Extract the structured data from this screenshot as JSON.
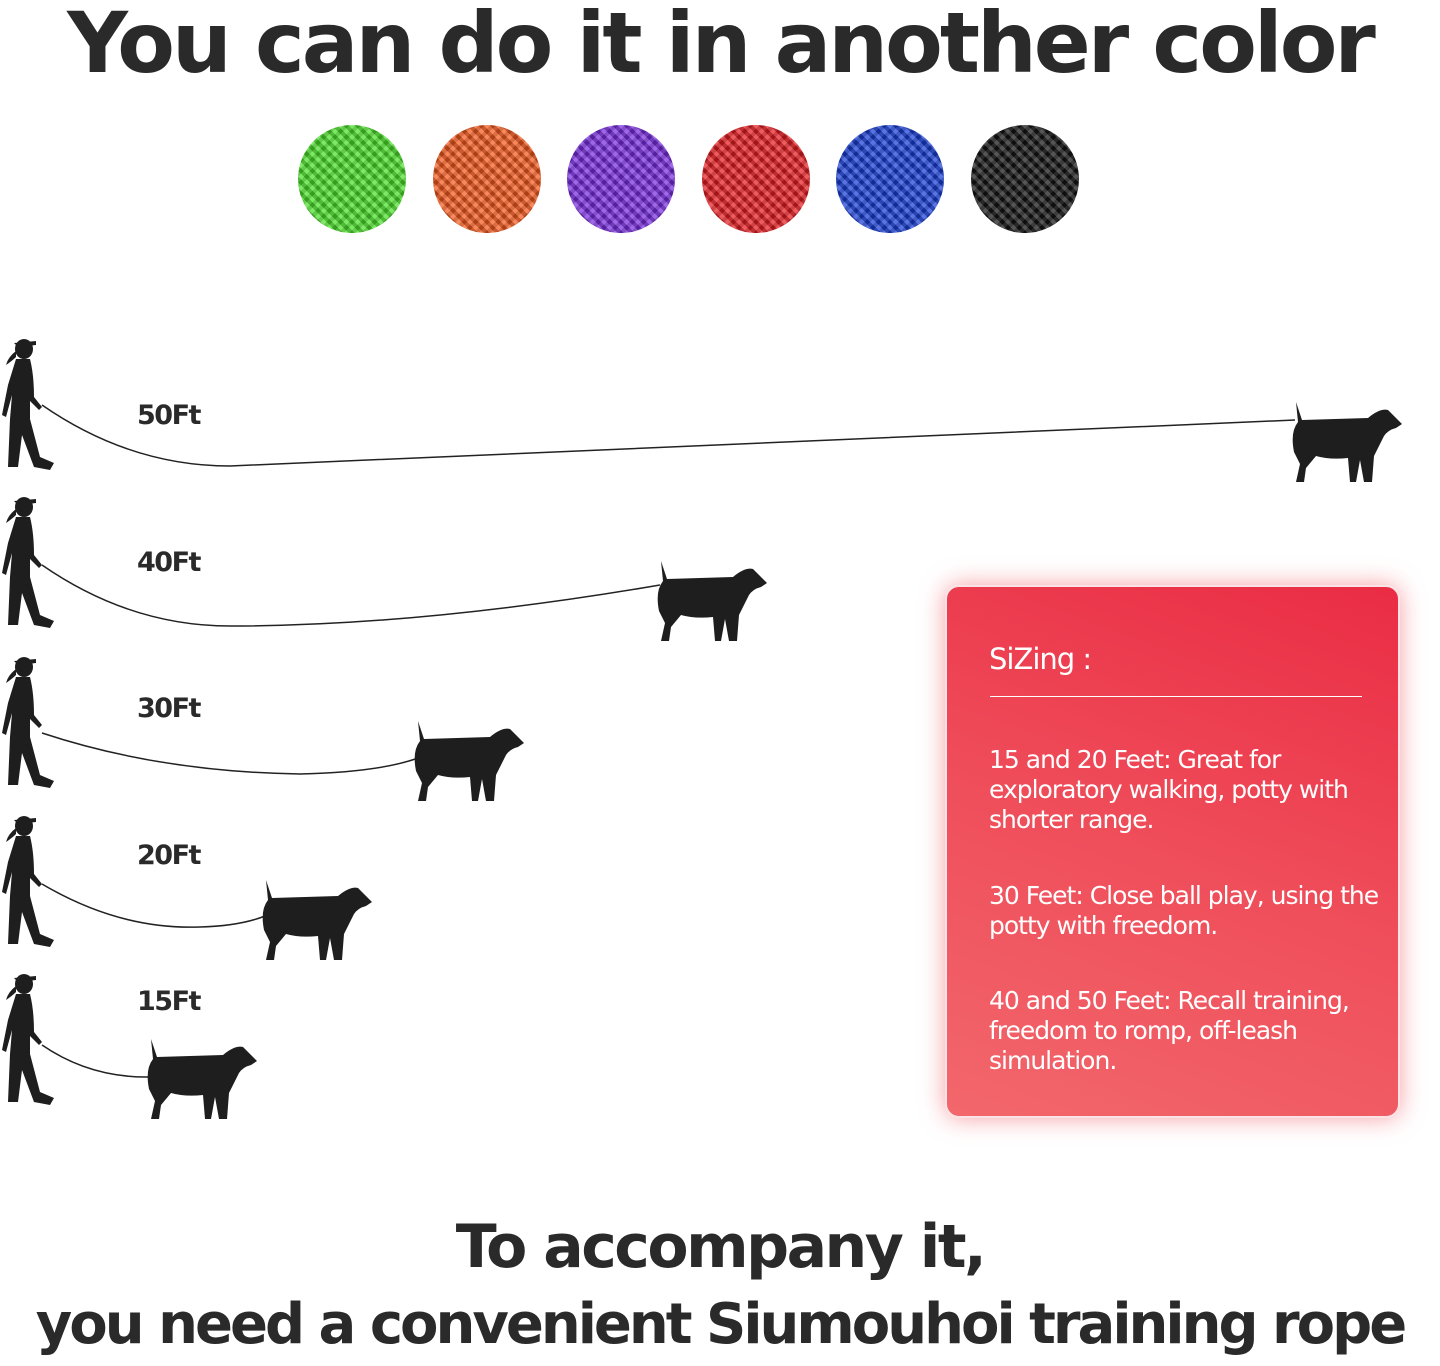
{
  "title": "You can do it in another color",
  "swatches": [
    {
      "name": "green",
      "color": "#4ce02a"
    },
    {
      "name": "orange",
      "color": "#f65a1e"
    },
    {
      "name": "purple",
      "color": "#7a2ee0"
    },
    {
      "name": "red",
      "color": "#e61e22"
    },
    {
      "name": "blue",
      "color": "#1a3fd6"
    },
    {
      "name": "black",
      "color": "#141414"
    }
  ],
  "lengths": [
    "50Ft",
    "40Ft",
    "30Ft",
    "20Ft",
    "15Ft"
  ],
  "sizing": {
    "heading": "SiZing :",
    "items": [
      "15 and 20 Feet: Great for exploratory walking, potty with shorter range.",
      "30 Feet: Close ball play, using the potty with freedom.",
      "40 and 50 Feet: Recall training, freedom to romp, off-leash simulation."
    ]
  },
  "bottom": {
    "line1": "To accompany it,",
    "line2": "you need a convenient Siumouhoi training rope"
  },
  "colors": {
    "text": "#2a2a2a",
    "card": "#ee3a4a",
    "silhouette": "#1e1e1e"
  }
}
